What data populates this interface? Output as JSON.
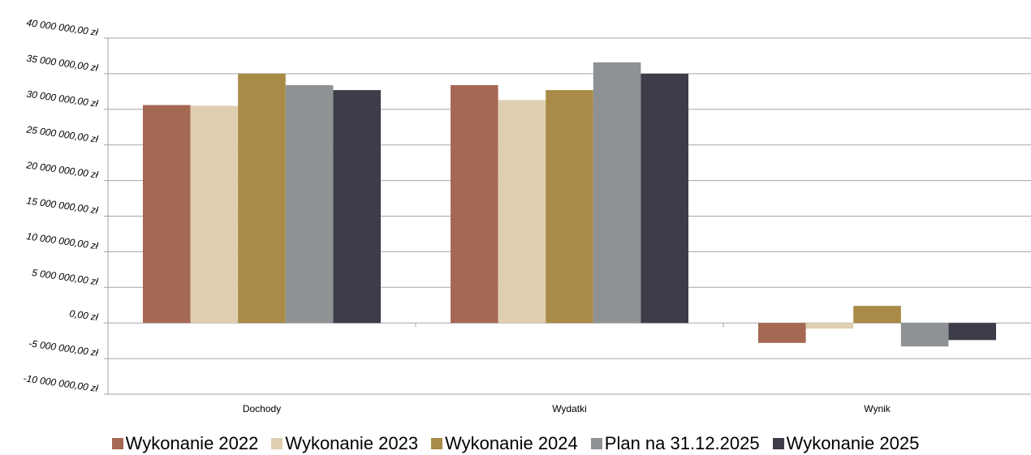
{
  "chart_data": {
    "type": "bar",
    "title": "",
    "xlabel": "",
    "ylabel": "",
    "categories": [
      "Dochody",
      "Wydatki",
      "Wynik"
    ],
    "ylim": [
      -10000000,
      40000000
    ],
    "y_ticks": [
      "-10 000 000,00 zł",
      "-5 000 000,00 zł",
      "0,00 zł",
      "5 000 000,00 zł",
      "10 000 000,00 zł",
      "15 000 000,00 zł",
      "20 000 000,00 zł",
      "25 000 000,00 zł",
      "30 000 000,00 zł",
      "35 000 000,00 zł",
      "40 000 000,00 zł"
    ],
    "y_tick_values": [
      -10000000,
      -5000000,
      0,
      5000000,
      10000000,
      15000000,
      20000000,
      25000000,
      30000000,
      35000000,
      40000000
    ],
    "grid": true,
    "legend_position": "bottom",
    "series": [
      {
        "name": "Wykonanie 2022",
        "color": "#a56853",
        "values": [
          30600000,
          33400000,
          -2800000
        ]
      },
      {
        "name": "Wykonanie 2023",
        "color": "#dfcfb0",
        "values": [
          30500000,
          31300000,
          -800000
        ]
      },
      {
        "name": "Wykonanie 2024",
        "color": "#a98a47",
        "values": [
          35000000,
          32700000,
          2400000
        ]
      },
      {
        "name": "Plan na 31.12.2025",
        "color": "#8f9294",
        "values": [
          33400000,
          36600000,
          -3300000
        ]
      },
      {
        "name": "Wykonanie 2025",
        "color": "#3c3d48",
        "values": [
          32700000,
          35000000,
          -2400000
        ]
      }
    ]
  }
}
